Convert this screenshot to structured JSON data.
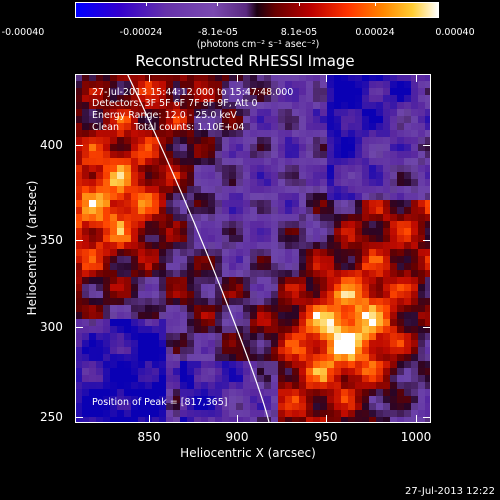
{
  "colorbar": {
    "ticks": [
      "-0.00040",
      "-0.00024",
      "-8.1e-05",
      "8.1e-05",
      "0.00024",
      "0.00040"
    ],
    "units": "(photons cm⁻² s⁻¹ asec⁻²)"
  },
  "title": "Reconstructed RHESSI Image",
  "info": {
    "time": "27-Jul-2013 15:44:12.000 to 15:47:48.000",
    "detectors": "Detectors: 3F 5F 6F 7F 8F 9F, Att 0",
    "energy": "Energy Range: 12.0 - 25.0 keV",
    "method": "Clean     Total counts: 1.10E+04",
    "peak": "Position of Peak = [817,365]"
  },
  "axes": {
    "xlabel": "Heliocentric X (arcsec)",
    "ylabel": "Heliocentric Y (arcsec)",
    "xticks": [
      "850",
      "900",
      "950",
      "1000"
    ],
    "yticks": [
      "400",
      "350",
      "300",
      "250"
    ]
  },
  "timestamp": "27-Jul-2013 12:22",
  "chart_data": {
    "type": "heatmap",
    "title": "Reconstructed RHESSI Image",
    "xlabel": "Heliocentric X (arcsec)",
    "ylabel": "Heliocentric Y (arcsec)",
    "xlim": [
      810,
      1005
    ],
    "ylim": [
      245,
      435
    ],
    "colorscale": [
      "#0000ff",
      "#6633aa",
      "#1a0010",
      "#bb0000",
      "#ff8800",
      "#ffffff"
    ],
    "zlim": [
      -0.0004,
      0.0004
    ],
    "limb": true,
    "peak": [
      817,
      365
    ]
  }
}
